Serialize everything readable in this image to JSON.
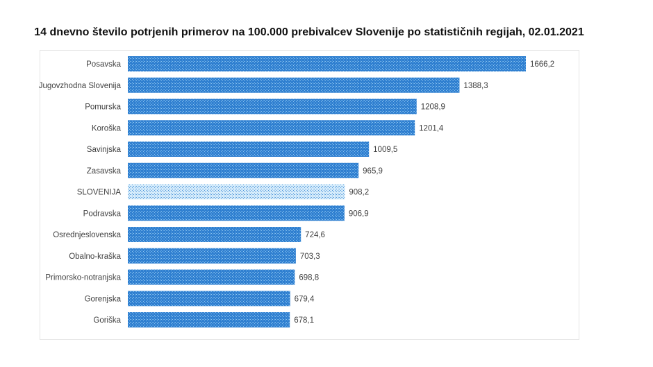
{
  "chart_data": {
    "type": "bar",
    "orientation": "horizontal",
    "title": "14 dnevno število potrjenih primerov na 100.000 prebivalcev Slovenije po statističnih regijah, 02.01.2021",
    "categories": [
      "Posavska",
      "Jugovzhodna Slovenija",
      "Pomurska",
      "Koroška",
      "Savinjska",
      "Zasavska",
      "SLOVENIJA",
      "Podravska",
      "Osrednjeslovenska",
      "Obalno-kraška",
      "Primorsko-notranjska",
      "Gorenjska",
      "Goriška"
    ],
    "values": [
      1666.2,
      1388.3,
      1208.9,
      1201.4,
      1009.5,
      965.9,
      908.2,
      906.9,
      724.6,
      703.3,
      698.8,
      679.4,
      678.1
    ],
    "value_labels": [
      "1666,2",
      "1388,3",
      "1208,9",
      "1201,4",
      "1009,5",
      "965,9",
      "908,2",
      "906,9",
      "724,6",
      "703,3",
      "698,8",
      "679,4",
      "678,1"
    ],
    "highlight": "SLOVENIJA",
    "xlim": [
      0,
      1666.2
    ],
    "grid": false,
    "legend": "none",
    "colors": {
      "bar": "#2f7fd0",
      "bar_pattern": "#8cc4f0",
      "highlight": "#4a93d8",
      "highlight_pattern": "#d6ecfb"
    }
  }
}
